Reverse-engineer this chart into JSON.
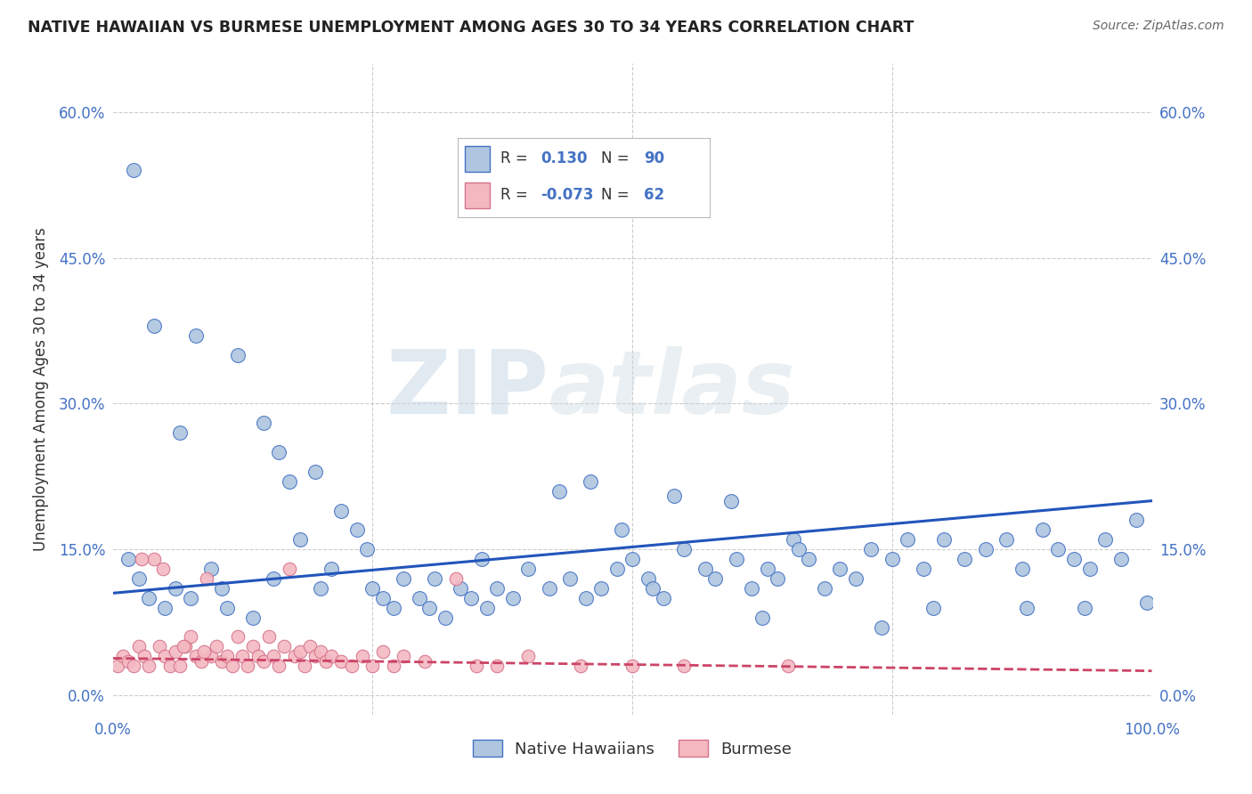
{
  "title": "NATIVE HAWAIIAN VS BURMESE UNEMPLOYMENT AMONG AGES 30 TO 34 YEARS CORRELATION CHART",
  "source": "Source: ZipAtlas.com",
  "ylabel": "Unemployment Among Ages 30 to 34 years",
  "xlim": [
    0,
    100
  ],
  "ylim": [
    -2,
    65
  ],
  "yticks": [
    0,
    15,
    30,
    45,
    60
  ],
  "ytick_labels": [
    "0.0%",
    "15.0%",
    "30.0%",
    "45.0%",
    "60.0%"
  ],
  "xtick_labels_left": "0.0%",
  "xtick_labels_right": "100.0%",
  "native_hawaiian_R": 0.13,
  "native_hawaiian_N": 90,
  "burmese_R": -0.073,
  "burmese_N": 62,
  "nh_color": "#aec6df",
  "nh_edge_color": "#4472c4",
  "bur_color": "#f4b8c1",
  "bur_edge_color": "#d4728a",
  "nh_line_color": "#2255bb",
  "bur_line_color": "#cc4466",
  "tick_color": "#4472c4",
  "background_color": "#ffffff",
  "watermark": "ZIPatlas",
  "native_hawaiians_x": [
    1.5,
    2.5,
    3.5,
    5.0,
    6.0,
    7.5,
    9.5,
    10.5,
    11.0,
    13.5,
    15.5,
    18.0,
    20.0,
    21.0,
    23.5,
    24.5,
    25.0,
    26.0,
    27.0,
    28.0,
    29.5,
    30.5,
    31.0,
    32.0,
    33.5,
    34.5,
    35.5,
    36.0,
    37.0,
    38.5,
    40.0,
    42.0,
    44.0,
    45.5,
    47.0,
    48.5,
    50.0,
    51.5,
    52.0,
    53.0,
    55.0,
    57.0,
    58.0,
    60.0,
    61.5,
    63.0,
    64.0,
    65.5,
    67.0,
    68.5,
    70.0,
    71.5,
    73.0,
    75.0,
    76.5,
    78.0,
    80.0,
    82.0,
    84.0,
    86.0,
    87.5,
    89.5,
    91.0,
    92.5,
    94.0,
    95.5,
    97.0,
    98.5,
    2.0,
    4.0,
    6.5,
    8.0,
    12.0,
    14.5,
    17.0,
    19.5,
    22.0,
    43.0,
    46.0,
    49.0,
    16.0,
    54.0,
    59.5,
    62.5,
    66.0,
    74.0,
    79.0,
    88.0,
    93.5,
    99.5
  ],
  "native_hawaiians_y": [
    14.0,
    12.0,
    10.0,
    9.0,
    11.0,
    10.0,
    13.0,
    11.0,
    9.0,
    8.0,
    12.0,
    16.0,
    11.0,
    13.0,
    17.0,
    15.0,
    11.0,
    10.0,
    9.0,
    12.0,
    10.0,
    9.0,
    12.0,
    8.0,
    11.0,
    10.0,
    14.0,
    9.0,
    11.0,
    10.0,
    13.0,
    11.0,
    12.0,
    10.0,
    11.0,
    13.0,
    14.0,
    12.0,
    11.0,
    10.0,
    15.0,
    13.0,
    12.0,
    14.0,
    11.0,
    13.0,
    12.0,
    16.0,
    14.0,
    11.0,
    13.0,
    12.0,
    15.0,
    14.0,
    16.0,
    13.0,
    16.0,
    14.0,
    15.0,
    16.0,
    13.0,
    17.0,
    15.0,
    14.0,
    13.0,
    16.0,
    14.0,
    18.0,
    54.0,
    38.0,
    27.0,
    37.0,
    35.0,
    28.0,
    22.0,
    23.0,
    19.0,
    21.0,
    22.0,
    17.0,
    25.0,
    20.5,
    20.0,
    8.0,
    15.0,
    7.0,
    9.0,
    9.0,
    9.0,
    9.5
  ],
  "burmese_x": [
    0.5,
    1.0,
    1.5,
    2.0,
    2.5,
    3.0,
    3.5,
    4.0,
    4.5,
    5.0,
    5.5,
    6.0,
    6.5,
    7.0,
    7.5,
    8.0,
    8.5,
    9.0,
    9.5,
    10.0,
    10.5,
    11.0,
    11.5,
    12.0,
    12.5,
    13.0,
    13.5,
    14.0,
    14.5,
    15.0,
    15.5,
    16.0,
    16.5,
    17.0,
    17.5,
    18.0,
    18.5,
    19.0,
    19.5,
    20.0,
    20.5,
    21.0,
    22.0,
    23.0,
    24.0,
    25.0,
    26.0,
    27.0,
    30.0,
    33.0,
    35.0,
    40.0,
    55.0,
    65.0,
    2.8,
    4.8,
    6.8,
    8.8,
    50.0,
    45.0,
    37.0,
    28.0
  ],
  "burmese_y": [
    3.0,
    4.0,
    3.5,
    3.0,
    5.0,
    4.0,
    3.0,
    14.0,
    5.0,
    4.0,
    3.0,
    4.5,
    3.0,
    5.0,
    6.0,
    4.0,
    3.5,
    12.0,
    4.0,
    5.0,
    3.5,
    4.0,
    3.0,
    6.0,
    4.0,
    3.0,
    5.0,
    4.0,
    3.5,
    6.0,
    4.0,
    3.0,
    5.0,
    13.0,
    4.0,
    4.5,
    3.0,
    5.0,
    4.0,
    4.5,
    3.5,
    4.0,
    3.5,
    3.0,
    4.0,
    3.0,
    4.5,
    3.0,
    3.5,
    12.0,
    3.0,
    4.0,
    3.0,
    3.0,
    14.0,
    13.0,
    5.0,
    4.5,
    3.0,
    3.0,
    3.0,
    4.0
  ]
}
